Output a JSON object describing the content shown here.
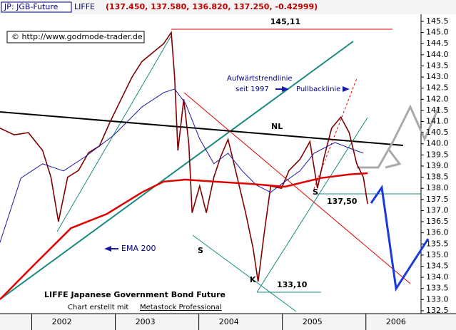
{
  "chart_data": {
    "type": "line",
    "title": "JP: JGB-Future",
    "subtitle": "LIFFE",
    "quote": "(137.450, 137.580, 136.820, 137.250, -0.42999)",
    "annotations": [
      "145,11",
      "Aufwärtstrendlinie",
      "seit 1997",
      "Pullbacklinie",
      "NL",
      "S",
      "S",
      "K",
      "133,10",
      "137,50",
      "EMA 200",
      "LIFFE Japanese Government Bond Future",
      "Chart erstellt mit",
      "Metastock Professional",
      "© http://www.godmode-trader.de"
    ],
    "xlim": [
      2001.62,
      2006.66
    ],
    "xticks": [
      2002,
      2003,
      2004,
      2005,
      2006
    ],
    "ylim": [
      132.37,
      145.82
    ],
    "yticks": [
      132.5,
      {
        "value": 133,
        "label": "133.0"
      },
      133.5,
      {
        "value": 134,
        "label": "134.0"
      },
      134.5,
      {
        "value": 135,
        "label": "135.0"
      },
      135.5,
      {
        "value": 136,
        "label": "136.0"
      },
      136.5,
      {
        "value": 137,
        "label": "137.0"
      },
      137.5,
      {
        "value": 138,
        "label": "138.0"
      },
      138.5,
      {
        "value": 139,
        "label": "139.0"
      },
      139.5,
      {
        "value": 140,
        "label": "140.0"
      },
      140.5,
      {
        "value": 141,
        "label": "141.0"
      },
      141.5,
      {
        "value": 142,
        "label": "142.0"
      },
      142.5,
      {
        "value": 143,
        "label": "143.0"
      },
      143.5,
      {
        "value": 144,
        "label": "144.0"
      },
      144.5,
      {
        "value": 145,
        "label": "145.0"
      },
      145.5
    ],
    "series": [
      {
        "color": "#800000",
        "x": [
          2001.62,
          2001.79,
          2001.96,
          2002.13,
          2002.23,
          2002.32,
          2002.43,
          2002.56,
          2002.68,
          2002.81,
          2002.94,
          2003.07,
          2003.2,
          2003.32,
          2003.45,
          2003.58,
          2003.67,
          2003.71,
          2003.75,
          2003.82,
          2003.88,
          2003.92,
          2004.01,
          2004.09,
          2004.18,
          2004.26,
          2004.35,
          2004.44,
          2004.56,
          2004.65,
          2004.71,
          2004.78,
          2004.86,
          2004.99,
          2005.08,
          2005.21,
          2005.33,
          2005.42,
          2005.5,
          2005.59,
          2005.7,
          2005.8,
          2005.89,
          2005.97,
          2006.02
        ],
        "values": [
          140.7,
          140.4,
          140.5,
          139.7,
          138.5,
          136.5,
          138.5,
          138.8,
          139.6,
          139.9,
          141,
          142,
          143,
          143.7,
          144.1,
          144.5,
          145,
          143,
          139.7,
          142,
          140,
          136.9,
          138.1,
          136.9,
          138.5,
          139.4,
          140.2,
          138.8,
          136.9,
          135.3,
          133.8,
          135.9,
          138.1,
          138,
          138.8,
          139.3,
          140.1,
          138,
          139.4,
          140.7,
          141.2,
          140.5,
          139.1,
          138.5,
          137.3
        ]
      },
      {
        "color": "#1a1aa0",
        "x": [
          2001.62,
          2001.87,
          2002.13,
          2002.38,
          2002.64,
          2002.98,
          2003.32,
          2003.58,
          2003.71,
          2003.84,
          2004.01,
          2004.18,
          2004.35,
          2004.52,
          2004.69,
          2004.86,
          2005.03,
          2005.21,
          2005.38,
          2005.63,
          2005.85,
          2005.97
        ],
        "values": [
          135.57,
          138.46,
          139.1,
          138.78,
          139.42,
          140.38,
          141.66,
          142.3,
          142.46,
          141.82,
          140.22,
          139.1,
          139.58,
          138.78,
          138.14,
          137.82,
          138.3,
          138.78,
          139.58,
          140.06,
          139.74,
          139.58
        ]
      },
      {
        "color": "#e00000",
        "x": [
          2001.62,
          2002.04,
          2002.47,
          2002.9,
          2003.32,
          2003.58,
          2003.84,
          2004.18,
          2004.61,
          2005.03,
          2005.46,
          2005.8,
          2006.02
        ],
        "values": [
          133.01,
          134.61,
          136.21,
          136.85,
          137.82,
          138.3,
          138.39,
          138.3,
          138.2,
          138.07,
          138.46,
          138.62,
          138.68
        ]
      }
    ]
  }
}
